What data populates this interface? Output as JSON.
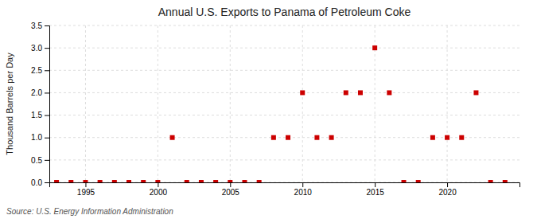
{
  "chart_data": {
    "type": "scatter",
    "title": "Annual U.S. Exports to Panama of Petroleum Coke",
    "ylabel": "Thousand Barrels per Day",
    "annotations": [
      "Source: U.S. Energy Information Administration"
    ],
    "x": [
      1993,
      1994,
      1995,
      1996,
      1997,
      1998,
      1999,
      2000,
      2001,
      2002,
      2003,
      2004,
      2005,
      2006,
      2007,
      2008,
      2009,
      2010,
      2011,
      2012,
      2013,
      2014,
      2015,
      2016,
      2017,
      2018,
      2019,
      2020,
      2021,
      2022,
      2023,
      2024
    ],
    "values": [
      0.0,
      0.0,
      0.0,
      0.0,
      0.0,
      0.0,
      0.0,
      0.0,
      1.0,
      0.0,
      0.0,
      0.0,
      0.0,
      0.0,
      0.0,
      1.0,
      1.0,
      2.0,
      1.0,
      1.0,
      2.0,
      2.0,
      3.0,
      2.0,
      0.0,
      0.0,
      1.0,
      1.0,
      1.0,
      2.0,
      0.0,
      0.0
    ],
    "color": "#cc0000",
    "marker": "square",
    "xlim": [
      1992.5,
      2025
    ],
    "xticks": [
      1995,
      2000,
      2005,
      2010,
      2015,
      2020
    ],
    "ylim": [
      0,
      3.5
    ],
    "yticks": [
      {
        "value": 0.0,
        "label": "0.0"
      },
      0.5,
      {
        "value": 1.0,
        "label": "1.0"
      },
      1.5,
      {
        "value": 2.0,
        "label": "2.0"
      },
      2.5,
      {
        "value": 3.0,
        "label": "3.0"
      },
      3.5
    ],
    "grid": true
  }
}
